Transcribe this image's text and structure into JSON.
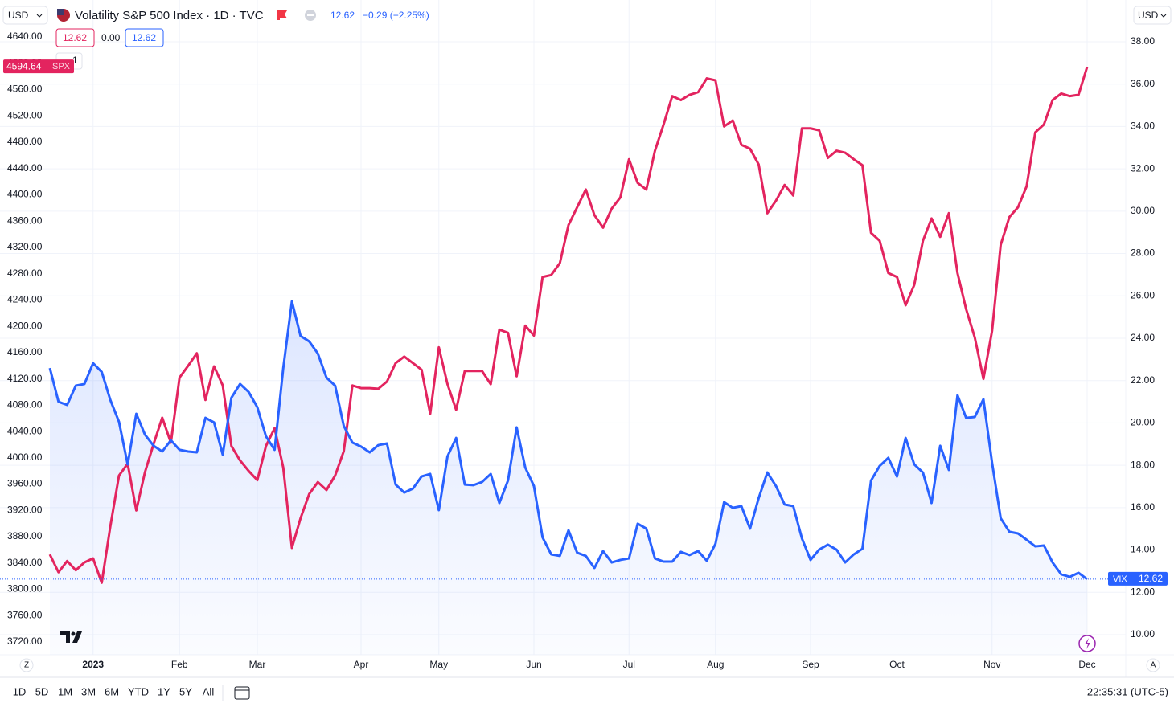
{
  "chart_data": {
    "type": "line",
    "title": "Volatility S&P 500 Index · 1D · TVC",
    "categories": [
      null,
      null,
      null,
      null,
      null,
      "2023",
      null,
      null,
      null,
      null,
      null,
      null,
      null,
      null,
      null,
      "Feb",
      null,
      null,
      null,
      null,
      null,
      null,
      null,
      null,
      "Mar",
      null,
      null,
      null,
      null,
      null,
      null,
      null,
      null,
      null,
      null,
      null,
      "Apr",
      null,
      null,
      null,
      null,
      null,
      null,
      null,
      null,
      "May",
      null,
      null,
      null,
      null,
      null,
      null,
      null,
      null,
      null,
      null,
      "Jun",
      null,
      null,
      null,
      null,
      null,
      null,
      null,
      null,
      null,
      null,
      "Jul",
      null,
      null,
      null,
      null,
      null,
      null,
      null,
      null,
      null,
      "Aug",
      null,
      null,
      null,
      null,
      null,
      null,
      null,
      null,
      null,
      null,
      "Sep",
      null,
      null,
      null,
      null,
      null,
      null,
      null,
      null,
      null,
      "Oct",
      null,
      null,
      null,
      null,
      null,
      null,
      null,
      null,
      null,
      null,
      "Nov",
      null,
      null,
      null,
      null,
      null,
      null,
      null,
      null,
      null,
      null,
      "Dec"
    ],
    "series": [
      {
        "name": "SPX",
        "color": "#e3245f",
        "axis": "y",
        "values": [
          3853,
          3826,
          3843,
          3829,
          3841,
          3847,
          3810,
          3896,
          3973,
          3991,
          3920,
          3978,
          4021,
          4061,
          4023,
          4122,
          4140,
          4159,
          4088,
          4139,
          4110,
          4018,
          3996,
          3980,
          3966,
          4018,
          4045,
          3985,
          3863,
          3908,
          3945,
          3963,
          3951,
          3973,
          4010,
          4110,
          4106,
          4106,
          4105,
          4116,
          4144,
          4154,
          4144,
          4134,
          4067,
          4168,
          4112,
          4073,
          4132,
          4132,
          4132,
          4112,
          4195,
          4190,
          4124,
          4201,
          4186,
          4275,
          4278,
          4296,
          4354,
          4381,
          4408,
          4369,
          4350,
          4379,
          4396,
          4454,
          4418,
          4408,
          4467,
          4507,
          4550,
          4544,
          4552,
          4556,
          4577,
          4574,
          4504,
          4513,
          4476,
          4470,
          4446,
          4372,
          4391,
          4415,
          4399,
          4501,
          4501,
          4498,
          4456,
          4467,
          4464,
          4454,
          4445,
          4342,
          4330,
          4281,
          4275,
          4232,
          4263,
          4330,
          4364,
          4336,
          4372,
          4281,
          4226,
          4183,
          4120,
          4193,
          4324,
          4366,
          4381,
          4413,
          4495,
          4507,
          4544,
          4554,
          4550,
          4552,
          4594.64
        ]
      },
      {
        "name": "VIX",
        "color": "#2962ff",
        "axis": "y2",
        "values": [
          22.59,
          21.0,
          20.85,
          21.76,
          21.84,
          22.82,
          22.41,
          21.08,
          20.05,
          18.04,
          20.43,
          19.45,
          18.92,
          18.65,
          19.18,
          18.73,
          18.65,
          18.61,
          20.24,
          20.02,
          18.5,
          21.19,
          21.84,
          21.46,
          20.74,
          19.37,
          18.73,
          22.59,
          25.74,
          24.11,
          23.85,
          23.28,
          22.14,
          21.76,
          19.86,
          19.07,
          18.88,
          18.61,
          18.95,
          19.03,
          17.09,
          16.71,
          16.9,
          17.47,
          17.59,
          15.88,
          18.42,
          19.29,
          17.09,
          17.06,
          17.21,
          17.59,
          16.22,
          17.28,
          19.79,
          17.89,
          17.02,
          14.59,
          13.79,
          13.72,
          14.93,
          13.87,
          13.72,
          13.15,
          13.95,
          13.41,
          13.53,
          13.6,
          15.24,
          15.01,
          13.6,
          13.45,
          13.45,
          13.91,
          13.76,
          13.95,
          13.49,
          14.29,
          16.26,
          15.99,
          16.07,
          15.01,
          16.45,
          17.66,
          17.02,
          16.15,
          16.07,
          14.55,
          13.53,
          14.02,
          14.25,
          14.02,
          13.41,
          13.79,
          14.06,
          17.28,
          17.97,
          18.35,
          17.47,
          19.29,
          18.04,
          17.66,
          16.22,
          18.92,
          17.78,
          21.31,
          20.24,
          20.28,
          21.12,
          18.12,
          15.5,
          14.86,
          14.78,
          14.48,
          14.17,
          14.21,
          13.41,
          12.85,
          12.73,
          12.92,
          12.62
        ]
      }
    ],
    "ylim": [
      3700.45,
      4653.44
    ],
    "yticks": [
      {
        "value": 3720,
        "label": "3720.00"
      },
      {
        "value": 3760,
        "label": "3760.00"
      },
      {
        "value": 3800,
        "label": "3800.00"
      },
      {
        "value": 3840,
        "label": "3840.00"
      },
      {
        "value": 3880,
        "label": "3880.00"
      },
      {
        "value": 3920,
        "label": "3920.00"
      },
      {
        "value": 3960,
        "label": "3960.00"
      },
      {
        "value": 4000,
        "label": "4000.00"
      },
      {
        "value": 4040,
        "label": "4040.00"
      },
      {
        "value": 4080,
        "label": "4080.00"
      },
      {
        "value": 4120,
        "label": "4120.00"
      },
      {
        "value": 4160,
        "label": "4160.00"
      },
      {
        "value": 4200,
        "label": "4200.00"
      },
      {
        "value": 4240,
        "label": "4240.00"
      },
      {
        "value": 4280,
        "label": "4280.00"
      },
      {
        "value": 4320,
        "label": "4320.00"
      },
      {
        "value": 4360,
        "label": "4360.00"
      },
      {
        "value": 4400,
        "label": "4400.00"
      },
      {
        "value": 4440,
        "label": "4440.00"
      },
      {
        "value": 4480,
        "label": "4480.00"
      },
      {
        "value": 4520,
        "label": "4520.00"
      },
      {
        "value": 4560,
        "label": "4560.00"
      },
      {
        "value": 4600,
        "label": "4600.00"
      },
      {
        "value": 4640,
        "label": "4640.00"
      }
    ],
    "y2lim": [
      9.05,
      38.645
    ],
    "y2ticks": [
      {
        "value": 10,
        "label": "10.00"
      },
      {
        "value": 12,
        "label": "12.00"
      },
      {
        "value": 14,
        "label": "14.00"
      },
      {
        "value": 16,
        "label": "16.00"
      },
      {
        "value": 18,
        "label": "18.00"
      },
      {
        "value": 20,
        "label": "20.00"
      },
      {
        "value": 22,
        "label": "22.00"
      },
      {
        "value": 24,
        "label": "24.00"
      },
      {
        "value": 26,
        "label": "26.00"
      },
      {
        "value": 28,
        "label": "28.00"
      },
      {
        "value": 30,
        "label": "30.00"
      },
      {
        "value": 32,
        "label": "32.00"
      },
      {
        "value": 34,
        "label": "34.00"
      },
      {
        "value": 36,
        "label": "36.00"
      },
      {
        "value": 38,
        "label": "38.00"
      }
    ],
    "grid": true
  },
  "ui": {
    "currency_left": "USD",
    "currency_right": "USD",
    "quote_change": "−0.29 (−2.25%)",
    "legend": [
      "12.62",
      "0.00",
      "12.62"
    ],
    "collapse": "1",
    "scale_left": "Z",
    "scale_right": "A",
    "timeframes": [
      "1D",
      "5D",
      "1M",
      "3M",
      "6M",
      "YTD",
      "1Y",
      "5Y",
      "All"
    ],
    "clock": "22:35:31 (UTC-5)"
  }
}
